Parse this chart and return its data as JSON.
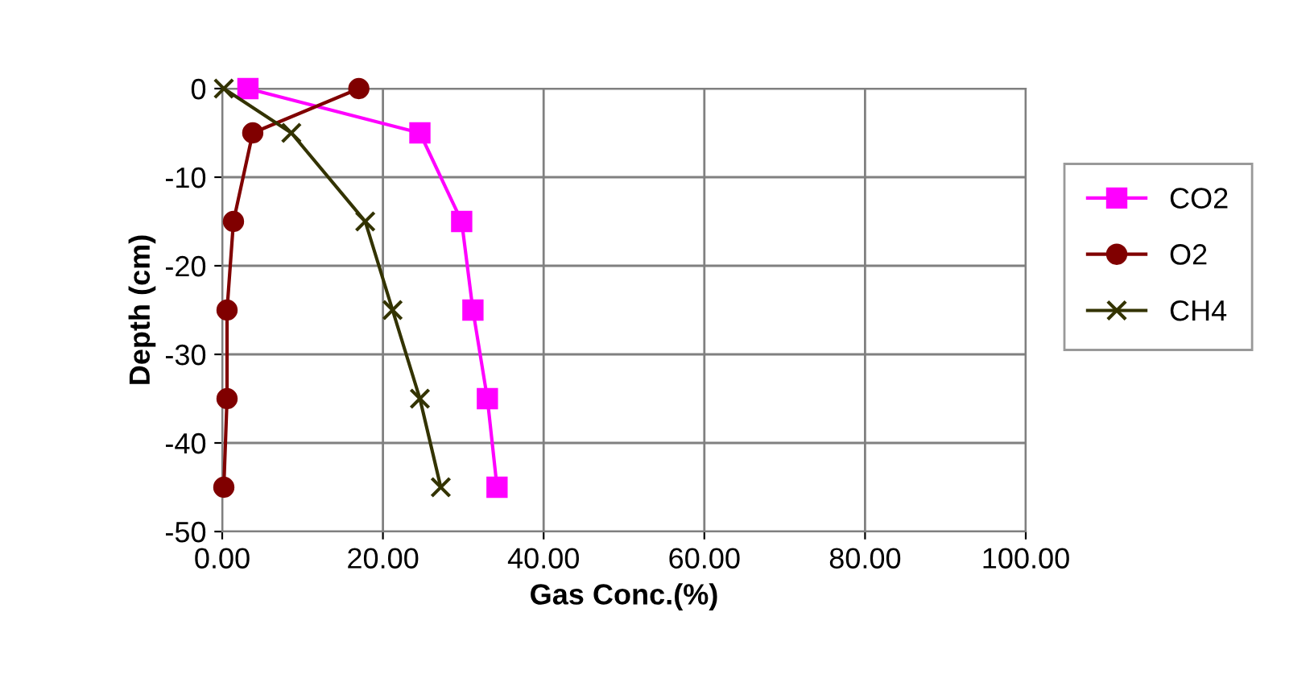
{
  "chart_data": {
    "type": "line",
    "xlabel": "Gas Conc.(%)",
    "ylabel": "Depth (cm)",
    "series": [
      {
        "name": "CO2",
        "color": "#ff00ff",
        "marker": "square",
        "x": [
          3.2,
          24.6,
          29.8,
          31.2,
          33,
          34.2
        ],
        "values": [
          0,
          -5,
          -15,
          -25,
          -35,
          -45
        ]
      },
      {
        "name": "O2",
        "color": "#800000",
        "marker": "circle",
        "x": [
          17,
          3.8,
          1.4,
          0.6,
          0.6,
          0.2
        ],
        "values": [
          0,
          -5,
          -15,
          -25,
          -35,
          -45
        ]
      },
      {
        "name": "CH4",
        "color": "#333300",
        "marker": "cross",
        "x": [
          0.2,
          8.6,
          17.8,
          21.2,
          24.6,
          27.2
        ],
        "values": [
          0,
          -5,
          -15,
          -25,
          -35,
          -45
        ]
      }
    ],
    "xlim": [
      0,
      100
    ],
    "xticks": [
      {
        "value": 0,
        "label": "0.00"
      },
      {
        "value": 20,
        "label": "20.00"
      },
      {
        "value": 40,
        "label": "40.00"
      },
      {
        "value": 60,
        "label": "60.00"
      },
      {
        "value": 80,
        "label": "80.00"
      },
      {
        "value": 100,
        "label": "100.00"
      }
    ],
    "ylim": [
      -50,
      0
    ],
    "yticks": [
      0,
      -10,
      -20,
      -30,
      -40,
      -50
    ],
    "grid": true,
    "legend": "right"
  }
}
